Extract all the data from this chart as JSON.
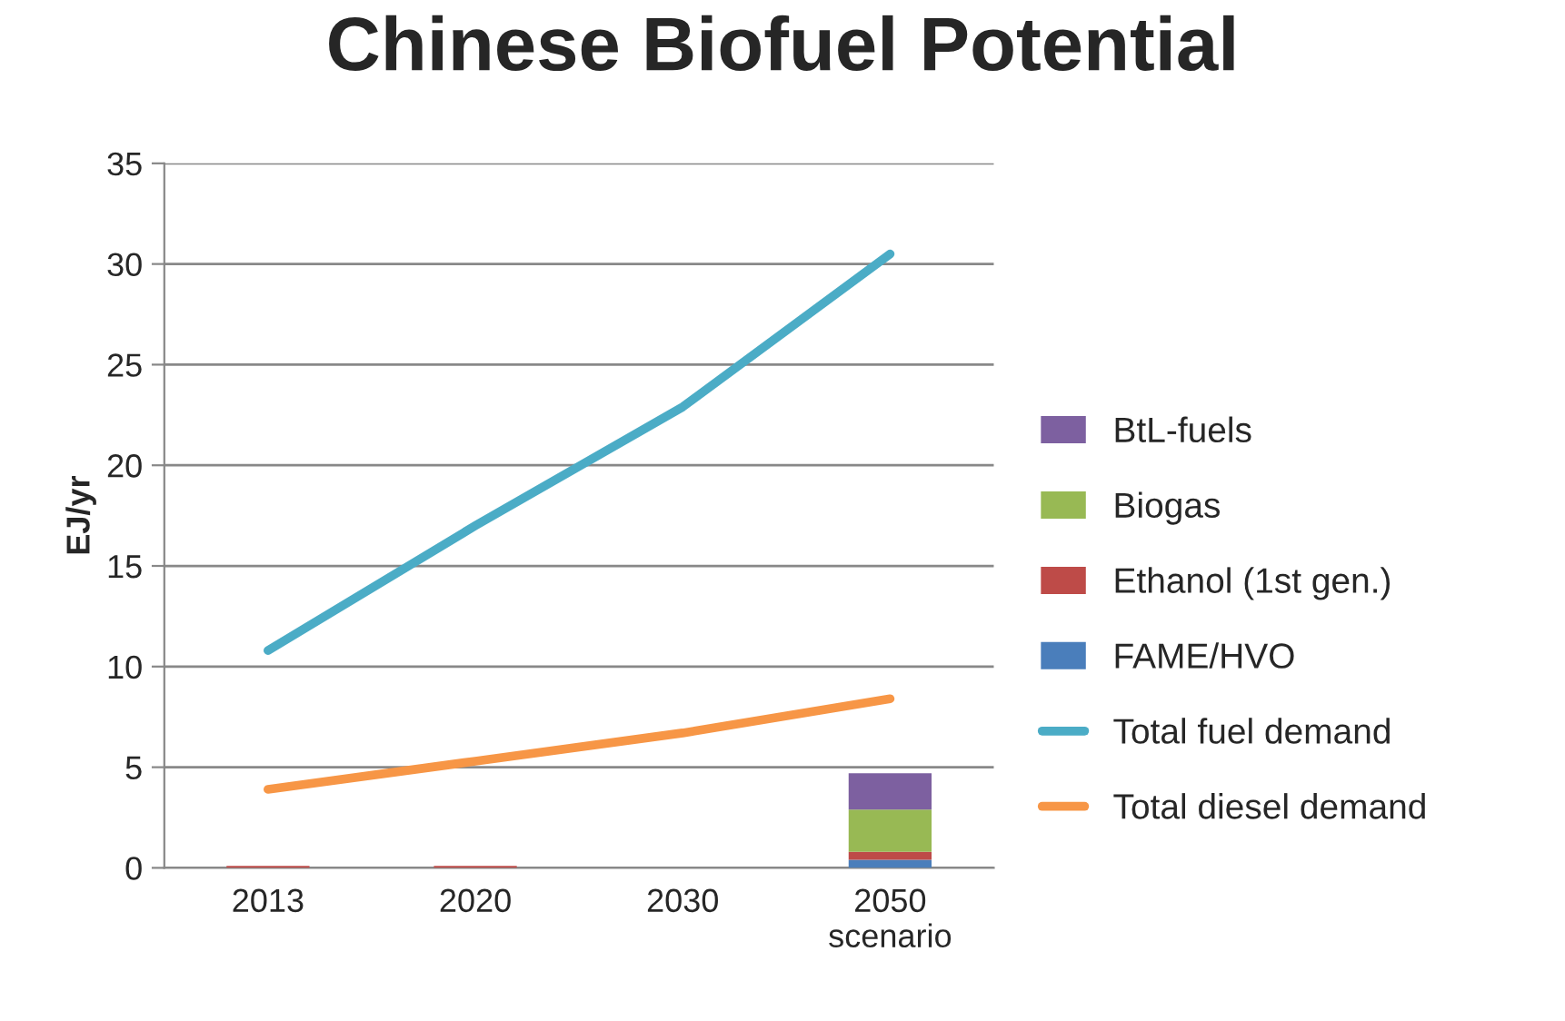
{
  "chart_data": {
    "type": "bar",
    "title": "Chinese Biofuel Potential",
    "ylabel": "EJ/yr",
    "categories": [
      "2013",
      "2020",
      "2030",
      "2050\nscenario"
    ],
    "stacked": true,
    "series": [
      {
        "name": "FAME/HVO",
        "color": "#4a7ebb",
        "values": [
          null,
          null,
          null,
          0.4
        ]
      },
      {
        "name": "Ethanol (1st gen.)",
        "color": "#be4b48",
        "values": [
          0.1,
          0.1,
          null,
          0.4
        ]
      },
      {
        "name": "Biogas",
        "color": "#98b954",
        "values": [
          null,
          null,
          null,
          2.1
        ]
      },
      {
        "name": "BtL-fuels",
        "color": "#7d60a0",
        "values": [
          null,
          null,
          null,
          1.8
        ]
      },
      {
        "name": "Total fuel demand",
        "type": "line",
        "color": "#4bacc6",
        "values": [
          10.8,
          17.0,
          22.9,
          30.5
        ]
      },
      {
        "name": "Total diesel demand",
        "type": "line",
        "color": "#f79646",
        "values": [
          3.9,
          5.3,
          6.7,
          8.4
        ]
      }
    ],
    "ylim": [
      0,
      35
    ],
    "yticks": [
      0,
      5,
      10,
      15,
      20,
      25,
      30,
      35
    ],
    "grid": "y",
    "legend": "right"
  }
}
